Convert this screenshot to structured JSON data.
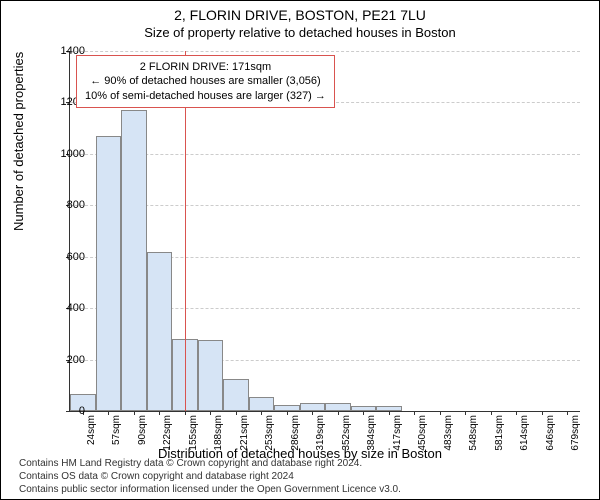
{
  "title": "2, FLORIN DRIVE, BOSTON, PE21 7LU",
  "subtitle": "Size of property relative to detached houses in Boston",
  "ylabel": "Number of detached properties",
  "xlabel": "Distribution of detached houses by size in Boston",
  "footer_line1": "Contains HM Land Registry data © Crown copyright and database right 2024.",
  "footer_line2": "Contains OS data © Crown copyright and database right 2024",
  "footer_line3": "Contains public sector information licensed under the Open Government Licence v3.0.",
  "info_box": {
    "line1": "2 FLORIN DRIVE: 171sqm",
    "line2": "← 90% of detached houses are smaller (3,056)",
    "line3": "10% of semi-detached houses are larger (327) →"
  },
  "chart": {
    "type": "histogram",
    "ylim": [
      0,
      1400
    ],
    "ytick_step": 200,
    "categories": [
      "24sqm",
      "57sqm",
      "90sqm",
      "122sqm",
      "155sqm",
      "188sqm",
      "221sqm",
      "253sqm",
      "286sqm",
      "319sqm",
      "352sqm",
      "384sqm",
      "417sqm",
      "450sqm",
      "483sqm",
      "548sqm",
      "581sqm",
      "614sqm",
      "646sqm",
      "679sqm"
    ],
    "values": [
      65,
      1070,
      1170,
      620,
      280,
      275,
      125,
      55,
      25,
      30,
      30,
      20,
      20,
      0,
      0,
      0,
      0,
      0,
      0,
      0
    ],
    "bar_color": "#d6e4f5",
    "bar_border": "#888888",
    "grid_color": "#cccccc",
    "marker_color": "#d9534f",
    "marker_index": 4.5,
    "title_fontsize": 14,
    "label_fontsize": 13,
    "tick_fontsize": 11
  }
}
